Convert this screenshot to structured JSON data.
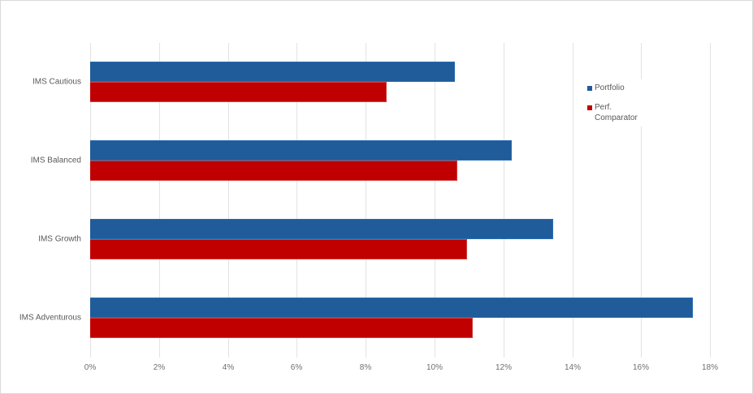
{
  "chart_data": {
    "type": "bar",
    "orientation": "horizontal",
    "title": "",
    "xlabel": "",
    "ylabel": "",
    "categories": [
      "IMS Cautious",
      "IMS Balanced",
      "IMS Growth",
      "IMS Adventurous"
    ],
    "series": [
      {
        "name": "Portfolio",
        "color": "#1f5c99",
        "values": [
          10.6,
          12.25,
          13.45,
          17.5
        ]
      },
      {
        "name": "Perf. Comparator",
        "color": "#c00000",
        "values": [
          8.6,
          10.65,
          10.95,
          11.1
        ]
      }
    ],
    "xlim": [
      0,
      18
    ],
    "xticks": [
      "0%",
      "2%",
      "4%",
      "6%",
      "8%",
      "10%",
      "12%",
      "14%",
      "16%",
      "18%"
    ],
    "grid": {
      "vertical": true,
      "horizontal": false
    },
    "legend_position": "right-top",
    "value_format": "percent"
  },
  "legend": {
    "items": [
      {
        "label": "Portfolio",
        "color": "#1f5c99"
      },
      {
        "label": "Perf. Comparator",
        "color": "#c00000"
      }
    ]
  }
}
